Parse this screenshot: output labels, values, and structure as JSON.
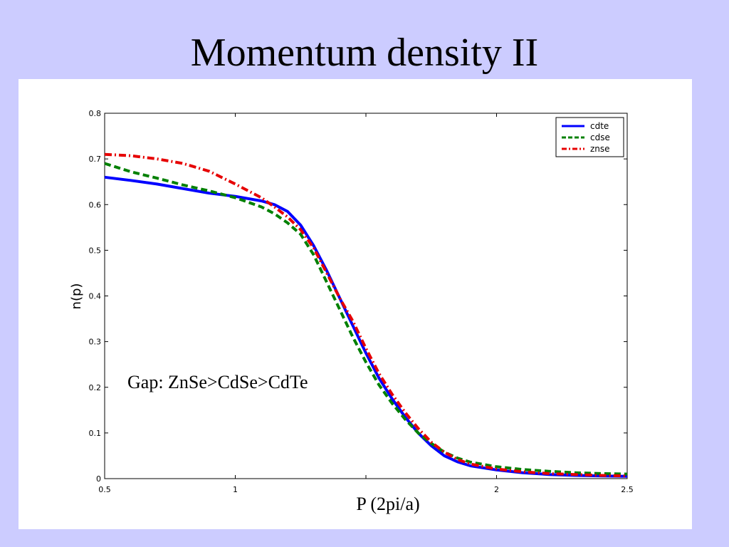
{
  "slide": {
    "title": "Momentum density II"
  },
  "chart_data": {
    "type": "line",
    "title": "",
    "xlabel": "P (2pi/a)",
    "ylabel": "n(p)",
    "xlim": [
      0.5,
      2.5
    ],
    "ylim": [
      0,
      0.8
    ],
    "xticks": [
      0.5,
      1,
      1.5,
      2,
      2.5
    ],
    "xtick_labels": [
      "0.5",
      "1",
      "",
      "2",
      "2.5"
    ],
    "yticks": [
      0,
      0.1,
      0.2,
      0.3,
      0.4,
      0.5,
      0.6,
      0.7,
      0.8
    ],
    "ytick_labels": [
      "0",
      "0.1",
      "0.2",
      "0.3",
      "0.4",
      "0.5",
      "0.6",
      "0.7",
      "0.8"
    ],
    "grid": false,
    "legend_position": "top-right",
    "annotation": "Gap: ZnSe>CdSe>CdTe",
    "series": [
      {
        "name": "cdte",
        "color": "#0000ff",
        "dash": "solid",
        "x": [
          0.5,
          0.6,
          0.7,
          0.8,
          0.9,
          1.0,
          1.1,
          1.15,
          1.2,
          1.25,
          1.3,
          1.35,
          1.4,
          1.45,
          1.5,
          1.55,
          1.6,
          1.65,
          1.7,
          1.75,
          1.8,
          1.85,
          1.9,
          2.0,
          2.1,
          2.2,
          2.3,
          2.4,
          2.5
        ],
        "y": [
          0.66,
          0.653,
          0.645,
          0.635,
          0.625,
          0.618,
          0.608,
          0.6,
          0.585,
          0.555,
          0.51,
          0.455,
          0.395,
          0.335,
          0.275,
          0.22,
          0.175,
          0.135,
          0.1,
          0.072,
          0.05,
          0.037,
          0.028,
          0.019,
          0.013,
          0.009,
          0.007,
          0.006,
          0.005
        ]
      },
      {
        "name": "cdse",
        "color": "#008000",
        "dash": "dashed",
        "x": [
          0.5,
          0.6,
          0.7,
          0.8,
          0.9,
          1.0,
          1.1,
          1.15,
          1.2,
          1.25,
          1.3,
          1.35,
          1.4,
          1.45,
          1.5,
          1.55,
          1.6,
          1.65,
          1.7,
          1.75,
          1.8,
          1.85,
          1.9,
          2.0,
          2.1,
          2.2,
          2.3,
          2.4,
          2.5
        ],
        "y": [
          0.69,
          0.672,
          0.658,
          0.643,
          0.63,
          0.615,
          0.595,
          0.58,
          0.56,
          0.535,
          0.49,
          0.43,
          0.37,
          0.31,
          0.255,
          0.205,
          0.165,
          0.13,
          0.1,
          0.077,
          0.058,
          0.045,
          0.036,
          0.026,
          0.02,
          0.016,
          0.013,
          0.011,
          0.01
        ]
      },
      {
        "name": "znse",
        "color": "#e60000",
        "dash": "dashdot",
        "x": [
          0.5,
          0.6,
          0.7,
          0.8,
          0.9,
          1.0,
          1.1,
          1.15,
          1.2,
          1.25,
          1.3,
          1.35,
          1.4,
          1.45,
          1.5,
          1.55,
          1.6,
          1.65,
          1.7,
          1.75,
          1.8,
          1.85,
          1.9,
          2.0,
          2.1,
          2.2,
          2.3,
          2.4,
          2.5
        ],
        "y": [
          0.71,
          0.707,
          0.7,
          0.69,
          0.673,
          0.645,
          0.615,
          0.595,
          0.573,
          0.545,
          0.505,
          0.45,
          0.395,
          0.345,
          0.285,
          0.23,
          0.185,
          0.145,
          0.11,
          0.08,
          0.058,
          0.042,
          0.032,
          0.021,
          0.015,
          0.011,
          0.009,
          0.007,
          0.006
        ]
      }
    ]
  }
}
